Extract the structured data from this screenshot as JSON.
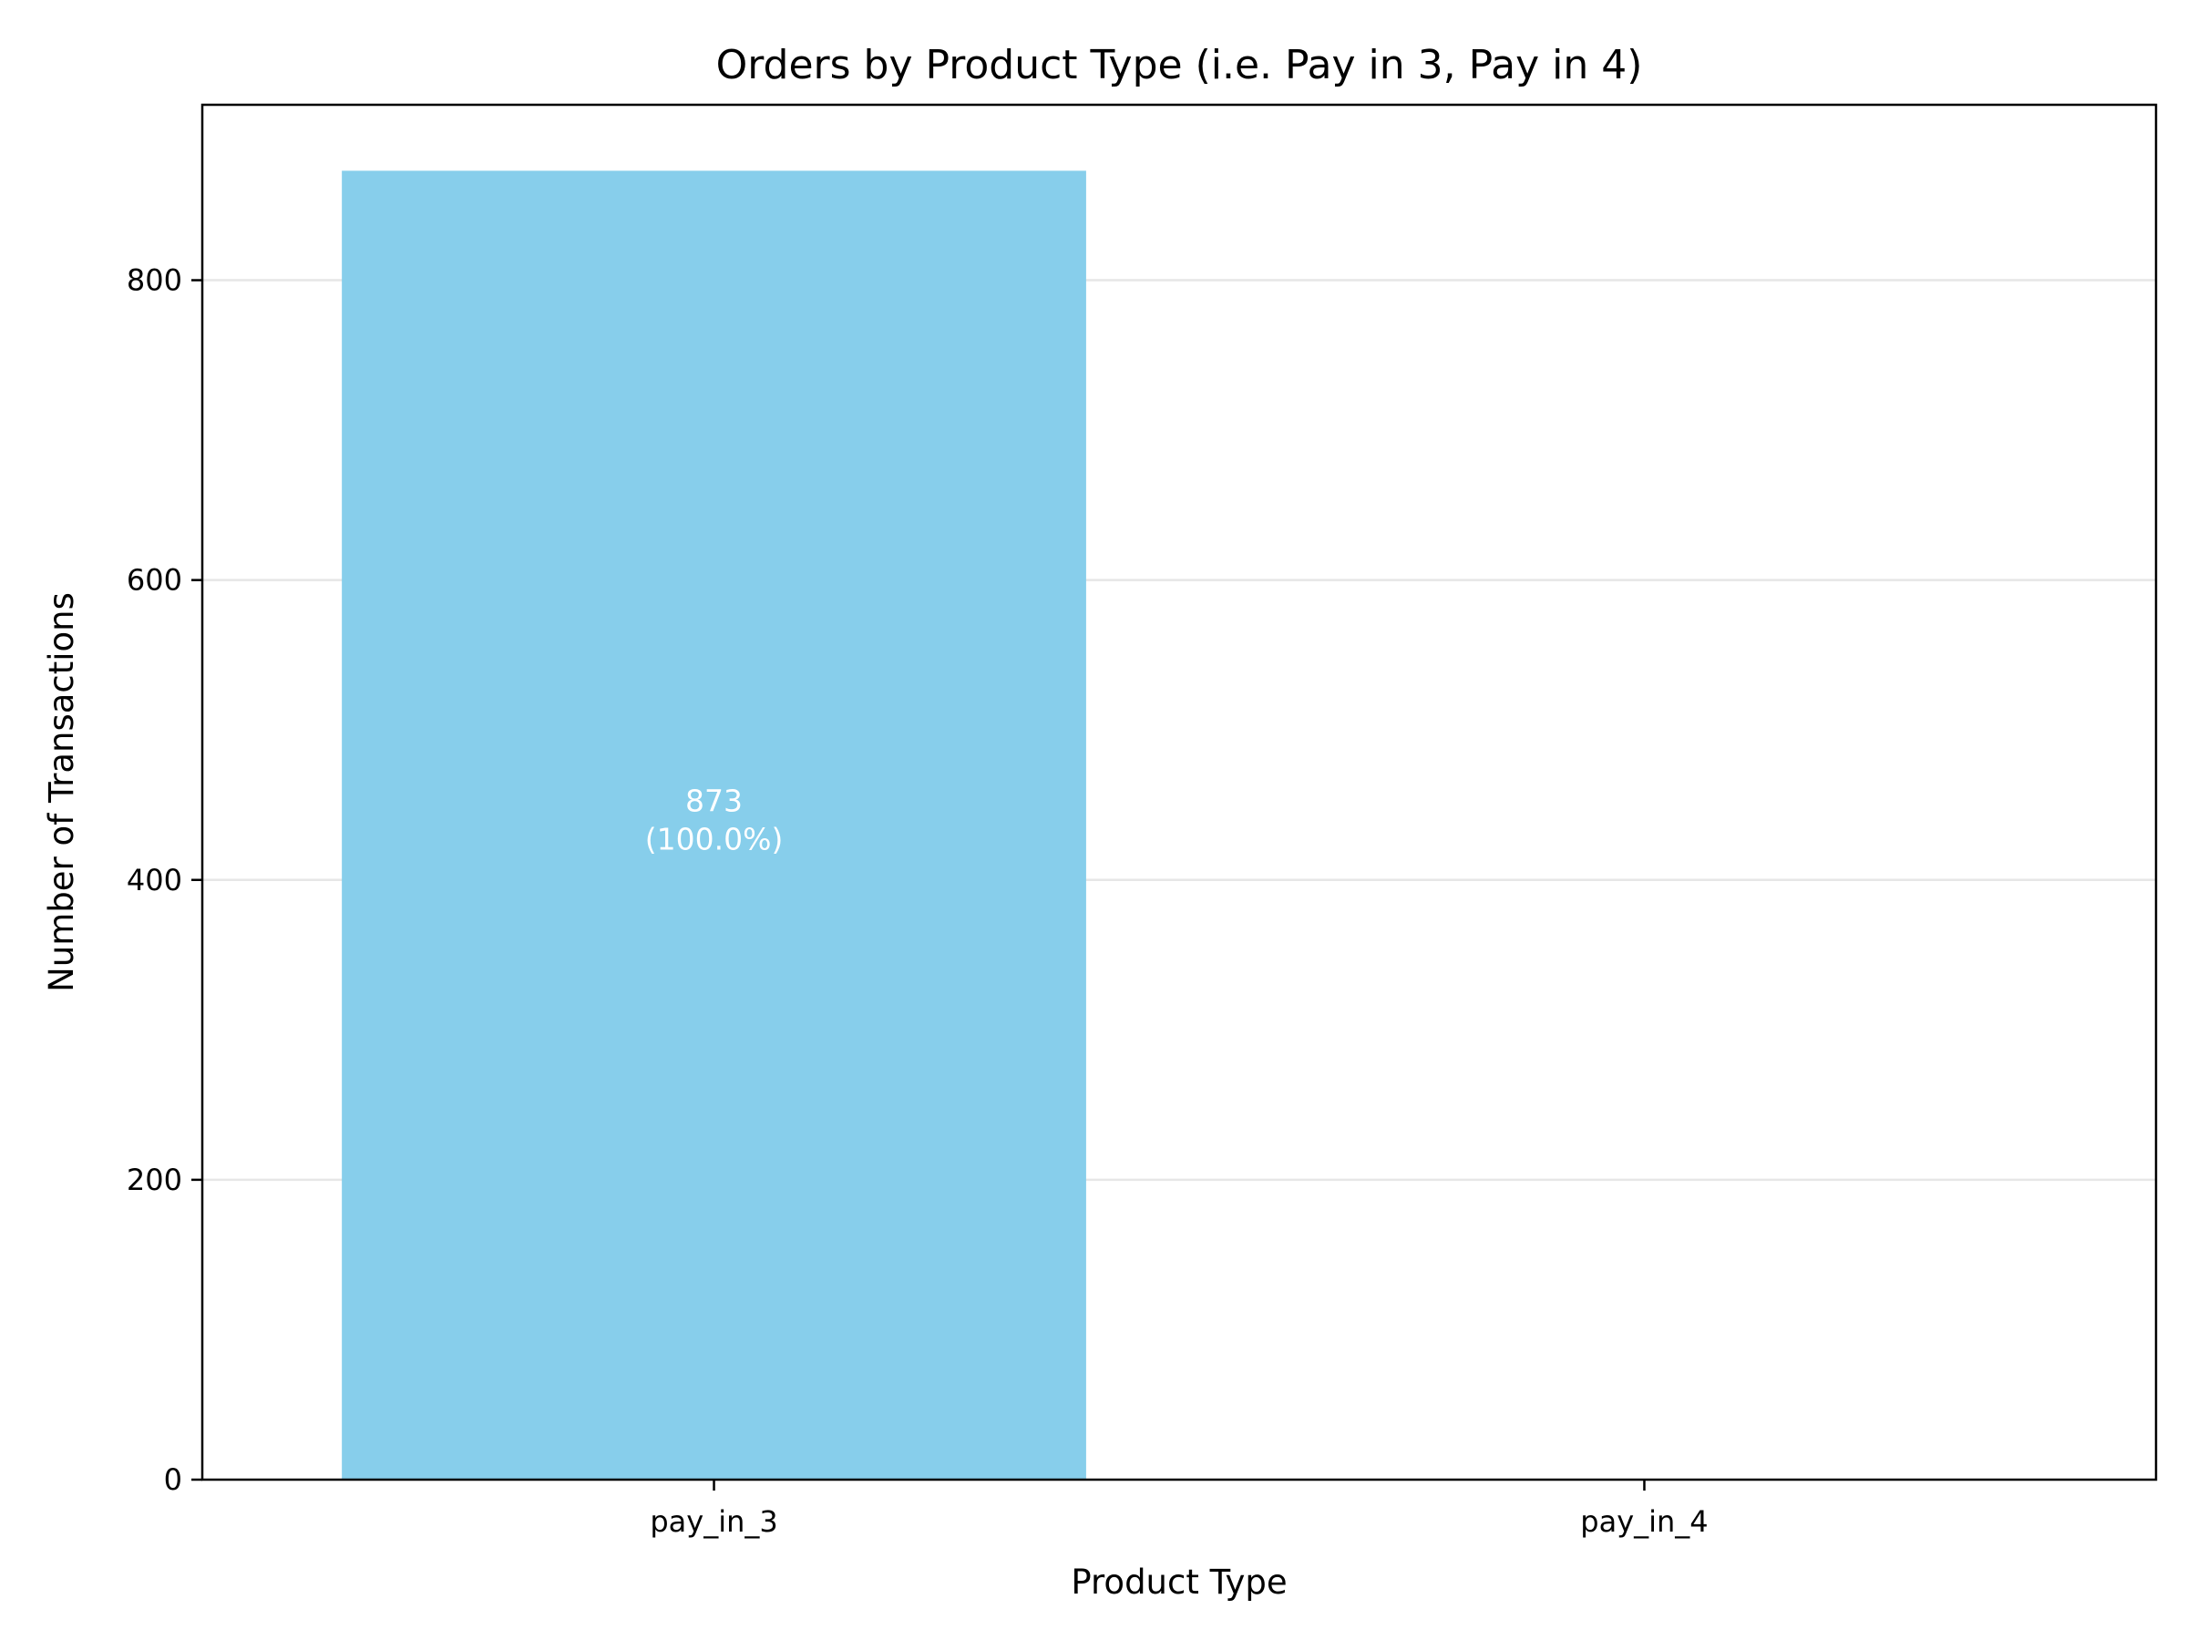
{
  "chart_data": {
    "type": "bar",
    "title": "Orders by Product Type (i.e. Pay in 3, Pay in 4)",
    "xlabel": "Product Type",
    "ylabel": "Number of Transactions",
    "categories": [
      "pay_in_3",
      "pay_in_4"
    ],
    "values": [
      873,
      0
    ],
    "data_labels": [
      {
        "count": "873",
        "percent": "(100.0%)"
      },
      null
    ],
    "ylim": [
      0,
      917
    ],
    "yticks": [
      0,
      200,
      400,
      600,
      800
    ],
    "grid": "y",
    "bar_color": "#87ceeb",
    "grid_color": "#e6e6e6"
  }
}
